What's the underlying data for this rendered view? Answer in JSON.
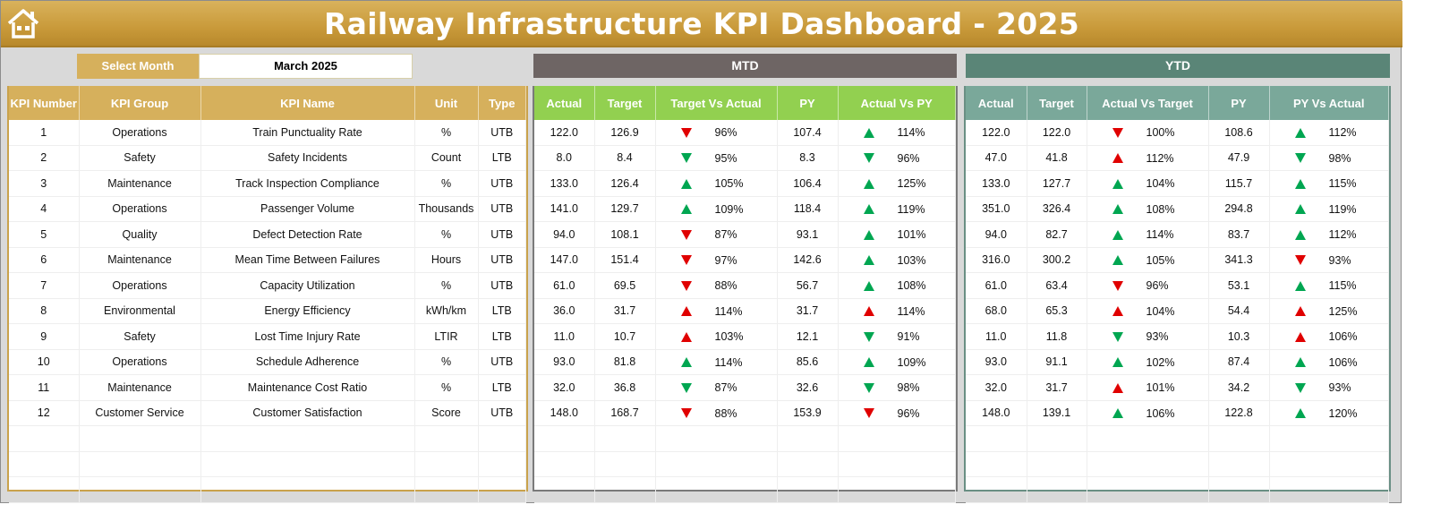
{
  "header": {
    "title": "Railway Infrastructure KPI Dashboard - 2025",
    "home_icon": "home-icon"
  },
  "filter": {
    "label": "Select Month",
    "value": "March 2025"
  },
  "colors": {
    "gold": "#d6b05c",
    "mtd_band": "#6e6564",
    "mtd_header": "#92d050",
    "ytd_band": "#5a8577",
    "ytd_header": "#7aa89a",
    "green": "#00a651",
    "red": "#e00000"
  },
  "left_table": {
    "columns": [
      "KPI Number",
      "KPI Group",
      "KPI Name",
      "Unit",
      "Type"
    ],
    "rows": [
      [
        "1",
        "Operations",
        "Train Punctuality Rate",
        "%",
        "UTB"
      ],
      [
        "2",
        "Safety",
        "Safety Incidents",
        "Count",
        "LTB"
      ],
      [
        "3",
        "Maintenance",
        "Track Inspection Compliance",
        "%",
        "UTB"
      ],
      [
        "4",
        "Operations",
        "Passenger Volume",
        "Thousands",
        "UTB"
      ],
      [
        "5",
        "Quality",
        "Defect Detection Rate",
        "%",
        "UTB"
      ],
      [
        "6",
        "Maintenance",
        "Mean Time Between Failures",
        "Hours",
        "UTB"
      ],
      [
        "7",
        "Operations",
        "Capacity Utilization",
        "%",
        "UTB"
      ],
      [
        "8",
        "Environmental",
        "Energy Efficiency",
        "kWh/km",
        "LTB"
      ],
      [
        "9",
        "Safety",
        "Lost Time Injury Rate",
        "LTIR",
        "LTB"
      ],
      [
        "10",
        "Operations",
        "Schedule Adherence",
        "%",
        "UTB"
      ],
      [
        "11",
        "Maintenance",
        "Maintenance Cost Ratio",
        "%",
        "LTB"
      ],
      [
        "12",
        "Customer Service",
        "Customer Satisfaction",
        "Score",
        "UTB"
      ]
    ]
  },
  "mtd": {
    "title": "MTD",
    "columns": [
      "Actual",
      "Target",
      "Target Vs Actual",
      "PY",
      "Actual Vs PY"
    ],
    "rows": [
      {
        "actual": "122.0",
        "target": "126.9",
        "tva": {
          "dir": "down",
          "color": "red",
          "pct": "96%"
        },
        "py": "107.4",
        "avp": {
          "dir": "up",
          "color": "green",
          "pct": "114%"
        }
      },
      {
        "actual": "8.0",
        "target": "8.4",
        "tva": {
          "dir": "down",
          "color": "green",
          "pct": "95%"
        },
        "py": "8.3",
        "avp": {
          "dir": "down",
          "color": "green",
          "pct": "96%"
        }
      },
      {
        "actual": "133.0",
        "target": "126.4",
        "tva": {
          "dir": "up",
          "color": "green",
          "pct": "105%"
        },
        "py": "106.4",
        "avp": {
          "dir": "up",
          "color": "green",
          "pct": "125%"
        }
      },
      {
        "actual": "141.0",
        "target": "129.7",
        "tva": {
          "dir": "up",
          "color": "green",
          "pct": "109%"
        },
        "py": "118.4",
        "avp": {
          "dir": "up",
          "color": "green",
          "pct": "119%"
        }
      },
      {
        "actual": "94.0",
        "target": "108.1",
        "tva": {
          "dir": "down",
          "color": "red",
          "pct": "87%"
        },
        "py": "93.1",
        "avp": {
          "dir": "up",
          "color": "green",
          "pct": "101%"
        }
      },
      {
        "actual": "147.0",
        "target": "151.4",
        "tva": {
          "dir": "down",
          "color": "red",
          "pct": "97%"
        },
        "py": "142.6",
        "avp": {
          "dir": "up",
          "color": "green",
          "pct": "103%"
        }
      },
      {
        "actual": "61.0",
        "target": "69.5",
        "tva": {
          "dir": "down",
          "color": "red",
          "pct": "88%"
        },
        "py": "56.7",
        "avp": {
          "dir": "up",
          "color": "green",
          "pct": "108%"
        }
      },
      {
        "actual": "36.0",
        "target": "31.7",
        "tva": {
          "dir": "up",
          "color": "red",
          "pct": "114%"
        },
        "py": "31.7",
        "avp": {
          "dir": "up",
          "color": "red",
          "pct": "114%"
        }
      },
      {
        "actual": "11.0",
        "target": "10.7",
        "tva": {
          "dir": "up",
          "color": "red",
          "pct": "103%"
        },
        "py": "12.1",
        "avp": {
          "dir": "down",
          "color": "green",
          "pct": "91%"
        }
      },
      {
        "actual": "93.0",
        "target": "81.8",
        "tva": {
          "dir": "up",
          "color": "green",
          "pct": "114%"
        },
        "py": "85.6",
        "avp": {
          "dir": "up",
          "color": "green",
          "pct": "109%"
        }
      },
      {
        "actual": "32.0",
        "target": "36.8",
        "tva": {
          "dir": "down",
          "color": "green",
          "pct": "87%"
        },
        "py": "32.6",
        "avp": {
          "dir": "down",
          "color": "green",
          "pct": "98%"
        }
      },
      {
        "actual": "148.0",
        "target": "168.7",
        "tva": {
          "dir": "down",
          "color": "red",
          "pct": "88%"
        },
        "py": "153.9",
        "avp": {
          "dir": "down",
          "color": "red",
          "pct": "96%"
        }
      }
    ]
  },
  "ytd": {
    "title": "YTD",
    "columns": [
      "Actual",
      "Target",
      "Actual Vs Target",
      "PY",
      "PY Vs Actual"
    ],
    "rows": [
      {
        "actual": "122.0",
        "target": "122.0",
        "tva": {
          "dir": "down",
          "color": "red",
          "pct": "100%"
        },
        "py": "108.6",
        "avp": {
          "dir": "up",
          "color": "green",
          "pct": "112%"
        }
      },
      {
        "actual": "47.0",
        "target": "41.8",
        "tva": {
          "dir": "up",
          "color": "red",
          "pct": "112%"
        },
        "py": "47.9",
        "avp": {
          "dir": "down",
          "color": "green",
          "pct": "98%"
        }
      },
      {
        "actual": "133.0",
        "target": "127.7",
        "tva": {
          "dir": "up",
          "color": "green",
          "pct": "104%"
        },
        "py": "115.7",
        "avp": {
          "dir": "up",
          "color": "green",
          "pct": "115%"
        }
      },
      {
        "actual": "351.0",
        "target": "326.4",
        "tva": {
          "dir": "up",
          "color": "green",
          "pct": "108%"
        },
        "py": "294.8",
        "avp": {
          "dir": "up",
          "color": "green",
          "pct": "119%"
        }
      },
      {
        "actual": "94.0",
        "target": "82.7",
        "tva": {
          "dir": "up",
          "color": "green",
          "pct": "114%"
        },
        "py": "83.7",
        "avp": {
          "dir": "up",
          "color": "green",
          "pct": "112%"
        }
      },
      {
        "actual": "316.0",
        "target": "300.2",
        "tva": {
          "dir": "up",
          "color": "green",
          "pct": "105%"
        },
        "py": "341.3",
        "avp": {
          "dir": "down",
          "color": "red",
          "pct": "93%"
        }
      },
      {
        "actual": "61.0",
        "target": "63.4",
        "tva": {
          "dir": "down",
          "color": "red",
          "pct": "96%"
        },
        "py": "53.1",
        "avp": {
          "dir": "up",
          "color": "green",
          "pct": "115%"
        }
      },
      {
        "actual": "68.0",
        "target": "65.3",
        "tva": {
          "dir": "up",
          "color": "red",
          "pct": "104%"
        },
        "py": "54.4",
        "avp": {
          "dir": "up",
          "color": "red",
          "pct": "125%"
        }
      },
      {
        "actual": "11.0",
        "target": "11.8",
        "tva": {
          "dir": "down",
          "color": "green",
          "pct": "93%"
        },
        "py": "10.3",
        "avp": {
          "dir": "up",
          "color": "red",
          "pct": "106%"
        }
      },
      {
        "actual": "93.0",
        "target": "91.1",
        "tva": {
          "dir": "up",
          "color": "green",
          "pct": "102%"
        },
        "py": "87.4",
        "avp": {
          "dir": "up",
          "color": "green",
          "pct": "106%"
        }
      },
      {
        "actual": "32.0",
        "target": "31.7",
        "tva": {
          "dir": "up",
          "color": "red",
          "pct": "101%"
        },
        "py": "34.2",
        "avp": {
          "dir": "down",
          "color": "green",
          "pct": "93%"
        }
      },
      {
        "actual": "148.0",
        "target": "139.1",
        "tva": {
          "dir": "up",
          "color": "green",
          "pct": "106%"
        },
        "py": "122.8",
        "avp": {
          "dir": "up",
          "color": "green",
          "pct": "120%"
        }
      }
    ]
  }
}
